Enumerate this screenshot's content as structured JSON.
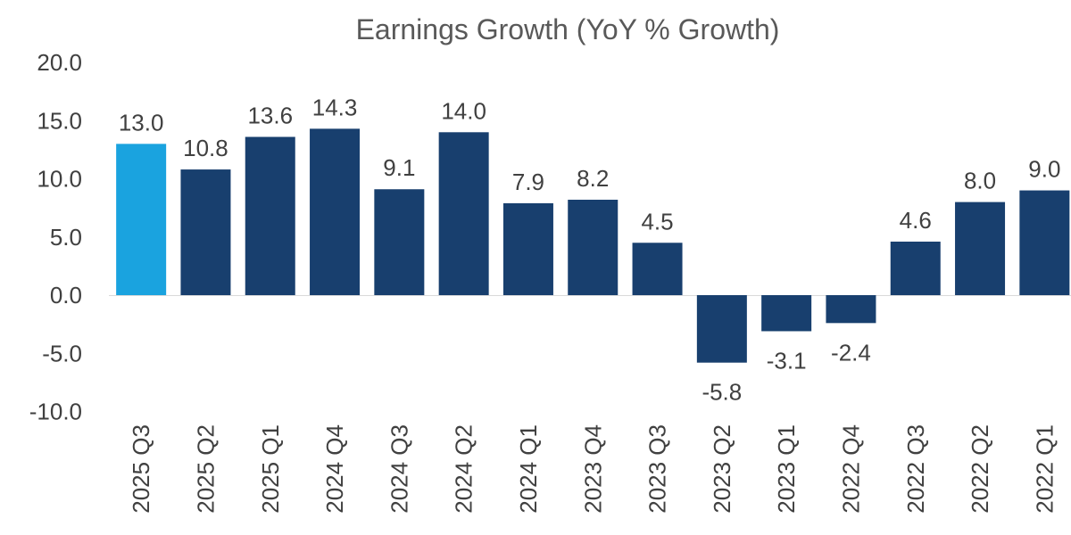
{
  "chart_data": {
    "type": "bar",
    "title": "Earnings Growth (YoY % Growth)",
    "xlabel": "",
    "ylabel": "",
    "ylim": [
      -10,
      20
    ],
    "yticks": [
      "20.0",
      "15.0",
      "10.0",
      "5.0",
      "0.0",
      "-5.0",
      "-10.0"
    ],
    "ytick_values": [
      20,
      15,
      10,
      5,
      0,
      -5,
      -10
    ],
    "categories": [
      "2025 Q3",
      "2025 Q2",
      "2025 Q1",
      "2024 Q4",
      "2024 Q3",
      "2024 Q2",
      "2024 Q1",
      "2023 Q4",
      "2023 Q3",
      "2023 Q2",
      "2023 Q1",
      "2022 Q4",
      "2022 Q3",
      "2022 Q2",
      "2022 Q1"
    ],
    "values": [
      13.0,
      10.8,
      13.6,
      14.3,
      9.1,
      14.0,
      7.9,
      8.2,
      4.5,
      -5.8,
      -3.1,
      -2.4,
      4.6,
      8.0,
      9.0
    ],
    "value_labels": [
      "13.0",
      "10.8",
      "13.6",
      "14.3",
      "9.1",
      "14.0",
      "7.9",
      "8.2",
      "4.5",
      "-5.8",
      "-3.1",
      "-2.4",
      "4.6",
      "8.0",
      "9.0"
    ],
    "highlight_index": 0,
    "colors": {
      "highlight": "#1aa3df",
      "bar": "#183f6e",
      "axis_line": "#d9d9d9"
    },
    "grid": false,
    "legend": "none"
  }
}
